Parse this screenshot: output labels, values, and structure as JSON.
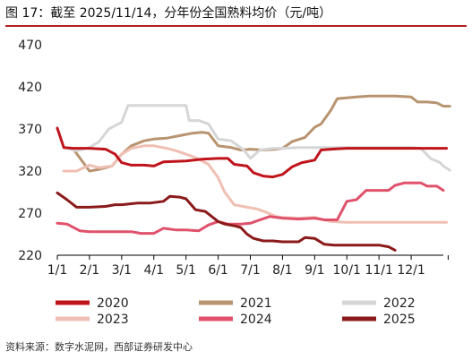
{
  "header": {
    "title": "图 17：截至 2025/11/14，分年份全国熟料均价（元/吨）"
  },
  "footer": {
    "source": "资料来源：数字水泥网，西部证券研发中心"
  },
  "colors": {
    "accent_rule": "#b01e23",
    "axis": "#000000"
  },
  "chart_data": {
    "type": "line",
    "title": "截至 2025/11/14，分年份全国熟料均价（元/吨）",
    "ylim": [
      220,
      470
    ],
    "yticks": [
      220,
      270,
      320,
      370,
      420,
      470
    ],
    "xlim": [
      1,
      13
    ],
    "xticks": [
      {
        "label": "1/1",
        "value": 1
      },
      {
        "label": "2/1",
        "value": 2
      },
      {
        "label": "3/1",
        "value": 3
      },
      {
        "label": "4/1",
        "value": 4
      },
      {
        "label": "5/1",
        "value": 5
      },
      {
        "label": "6/1",
        "value": 6
      },
      {
        "label": "7/1",
        "value": 7
      },
      {
        "label": "8/1",
        "value": 8
      },
      {
        "label": "9/1",
        "value": 9
      },
      {
        "label": "10/1",
        "value": 10
      },
      {
        "label": "11/1",
        "value": 11
      },
      {
        "label": "12/1",
        "value": 12
      }
    ],
    "grid": false,
    "legend_position": "bottom",
    "series": [
      {
        "name": "2020",
        "color": "#c0141c",
        "points": [
          [
            1.0,
            371
          ],
          [
            1.2,
            348
          ],
          [
            1.5,
            347
          ],
          [
            2.0,
            347
          ],
          [
            2.5,
            346
          ],
          [
            2.8,
            340
          ],
          [
            3.0,
            330
          ],
          [
            3.3,
            327
          ],
          [
            3.7,
            327
          ],
          [
            4.0,
            326
          ],
          [
            4.3,
            331
          ],
          [
            5.0,
            332
          ],
          [
            5.5,
            334
          ],
          [
            6.0,
            335
          ],
          [
            6.3,
            335
          ],
          [
            6.5,
            328
          ],
          [
            6.9,
            326
          ],
          [
            7.1,
            318
          ],
          [
            7.4,
            314
          ],
          [
            7.7,
            313
          ],
          [
            8.0,
            316
          ],
          [
            8.3,
            325
          ],
          [
            8.6,
            330
          ],
          [
            9.0,
            333
          ],
          [
            9.2,
            345
          ],
          [
            9.5,
            346
          ],
          [
            10.0,
            347
          ],
          [
            11.0,
            347
          ],
          [
            12.0,
            347
          ],
          [
            12.5,
            347
          ],
          [
            13.1,
            347
          ]
        ]
      },
      {
        "name": "2021",
        "color": "#b89470",
        "points": [
          [
            1.2,
            348
          ],
          [
            1.5,
            346
          ],
          [
            2.0,
            320
          ],
          [
            2.3,
            322
          ],
          [
            2.7,
            326
          ],
          [
            3.0,
            340
          ],
          [
            3.3,
            350
          ],
          [
            3.7,
            356
          ],
          [
            4.0,
            358
          ],
          [
            4.4,
            359
          ],
          [
            4.8,
            362
          ],
          [
            5.2,
            365
          ],
          [
            5.5,
            366
          ],
          [
            5.7,
            365
          ],
          [
            6.0,
            350
          ],
          [
            6.4,
            348
          ],
          [
            6.7,
            345
          ],
          [
            7.0,
            346
          ],
          [
            7.4,
            345
          ],
          [
            7.8,
            346
          ],
          [
            8.0,
            347
          ],
          [
            8.3,
            355
          ],
          [
            8.7,
            360
          ],
          [
            9.0,
            372
          ],
          [
            9.2,
            376
          ],
          [
            9.5,
            392
          ],
          [
            9.7,
            406
          ],
          [
            10.0,
            407
          ],
          [
            10.3,
            408
          ],
          [
            10.7,
            409
          ],
          [
            11.0,
            409
          ],
          [
            11.5,
            409
          ],
          [
            12.0,
            408
          ],
          [
            12.2,
            402
          ],
          [
            12.5,
            402
          ],
          [
            12.8,
            401
          ],
          [
            13.0,
            397
          ],
          [
            13.2,
            397
          ]
        ]
      },
      {
        "name": "2022",
        "color": "#d6d6d6",
        "points": [
          [
            1.2,
            348
          ],
          [
            1.6,
            344
          ],
          [
            2.0,
            348
          ],
          [
            2.3,
            355
          ],
          [
            2.6,
            370
          ],
          [
            3.0,
            378
          ],
          [
            3.2,
            398
          ],
          [
            3.5,
            398
          ],
          [
            4.0,
            398
          ],
          [
            4.5,
            398
          ],
          [
            5.0,
            398
          ],
          [
            5.1,
            380
          ],
          [
            5.4,
            380
          ],
          [
            5.7,
            376
          ],
          [
            6.0,
            358
          ],
          [
            6.4,
            356
          ],
          [
            6.8,
            345
          ],
          [
            7.0,
            335
          ],
          [
            7.3,
            345
          ],
          [
            7.7,
            347
          ],
          [
            8.0,
            347
          ],
          [
            8.5,
            348
          ],
          [
            9.0,
            348
          ],
          [
            10.0,
            348
          ],
          [
            11.0,
            348
          ],
          [
            11.5,
            348
          ],
          [
            12.0,
            348
          ],
          [
            12.3,
            347
          ],
          [
            12.6,
            335
          ],
          [
            12.9,
            330
          ],
          [
            13.0,
            326
          ],
          [
            13.2,
            321
          ]
        ]
      },
      {
        "name": "2023",
        "color": "#f0bfb3",
        "points": [
          [
            1.2,
            320
          ],
          [
            1.6,
            320
          ],
          [
            2.0,
            327
          ],
          [
            2.3,
            324
          ],
          [
            2.7,
            326
          ],
          [
            3.0,
            340
          ],
          [
            3.3,
            347
          ],
          [
            3.7,
            350
          ],
          [
            4.0,
            350
          ],
          [
            4.4,
            347
          ],
          [
            4.7,
            344
          ],
          [
            5.0,
            340
          ],
          [
            5.3,
            336
          ],
          [
            5.7,
            328
          ],
          [
            6.0,
            312
          ],
          [
            6.2,
            295
          ],
          [
            6.5,
            280
          ],
          [
            6.9,
            277
          ],
          [
            7.2,
            275
          ],
          [
            7.5,
            271
          ],
          [
            7.8,
            266
          ],
          [
            8.0,
            265
          ],
          [
            8.5,
            264
          ],
          [
            9.0,
            265
          ],
          [
            9.5,
            260
          ],
          [
            10.0,
            259
          ],
          [
            10.5,
            259
          ],
          [
            11.0,
            259
          ],
          [
            11.5,
            259
          ],
          [
            12.0,
            259
          ],
          [
            12.5,
            259
          ],
          [
            13.1,
            259
          ]
        ]
      },
      {
        "name": "2024",
        "color": "#e0526c",
        "points": [
          [
            1.0,
            258
          ],
          [
            1.3,
            257
          ],
          [
            1.7,
            249
          ],
          [
            2.0,
            248
          ],
          [
            2.5,
            248
          ],
          [
            3.0,
            248
          ],
          [
            3.3,
            248
          ],
          [
            3.6,
            246
          ],
          [
            4.0,
            246
          ],
          [
            4.3,
            252
          ],
          [
            4.7,
            250
          ],
          [
            5.0,
            250
          ],
          [
            5.4,
            249
          ],
          [
            5.7,
            256
          ],
          [
            6.0,
            260
          ],
          [
            6.3,
            257
          ],
          [
            6.7,
            257
          ],
          [
            7.0,
            258
          ],
          [
            7.3,
            262
          ],
          [
            7.6,
            266
          ],
          [
            8.0,
            264
          ],
          [
            8.5,
            263
          ],
          [
            9.0,
            264
          ],
          [
            9.3,
            262
          ],
          [
            9.7,
            262
          ],
          [
            10.0,
            284
          ],
          [
            10.3,
            286
          ],
          [
            10.6,
            297
          ],
          [
            11.0,
            297
          ],
          [
            11.3,
            297
          ],
          [
            11.5,
            303
          ],
          [
            11.8,
            306
          ],
          [
            12.0,
            306
          ],
          [
            12.3,
            306
          ],
          [
            12.5,
            302
          ],
          [
            12.8,
            302
          ],
          [
            13.0,
            297
          ]
        ]
      },
      {
        "name": "2025",
        "color": "#8b1a1a",
        "points": [
          [
            1.0,
            294
          ],
          [
            1.3,
            286
          ],
          [
            1.6,
            277
          ],
          [
            2.0,
            277
          ],
          [
            2.5,
            278
          ],
          [
            2.8,
            280
          ],
          [
            3.0,
            280
          ],
          [
            3.5,
            282
          ],
          [
            3.9,
            282
          ],
          [
            4.3,
            284
          ],
          [
            4.5,
            290
          ],
          [
            4.8,
            289
          ],
          [
            5.0,
            287
          ],
          [
            5.3,
            274
          ],
          [
            5.6,
            272
          ],
          [
            6.0,
            260
          ],
          [
            6.2,
            257
          ],
          [
            6.5,
            255
          ],
          [
            6.7,
            253
          ],
          [
            6.9,
            245
          ],
          [
            7.1,
            240
          ],
          [
            7.4,
            237
          ],
          [
            7.7,
            237
          ],
          [
            8.0,
            236
          ],
          [
            8.5,
            236
          ],
          [
            8.7,
            241
          ],
          [
            9.0,
            240
          ],
          [
            9.3,
            233
          ],
          [
            9.6,
            232
          ],
          [
            10.0,
            232
          ],
          [
            10.5,
            232
          ],
          [
            11.0,
            232
          ],
          [
            11.3,
            230
          ],
          [
            11.5,
            226
          ]
        ]
      }
    ]
  }
}
